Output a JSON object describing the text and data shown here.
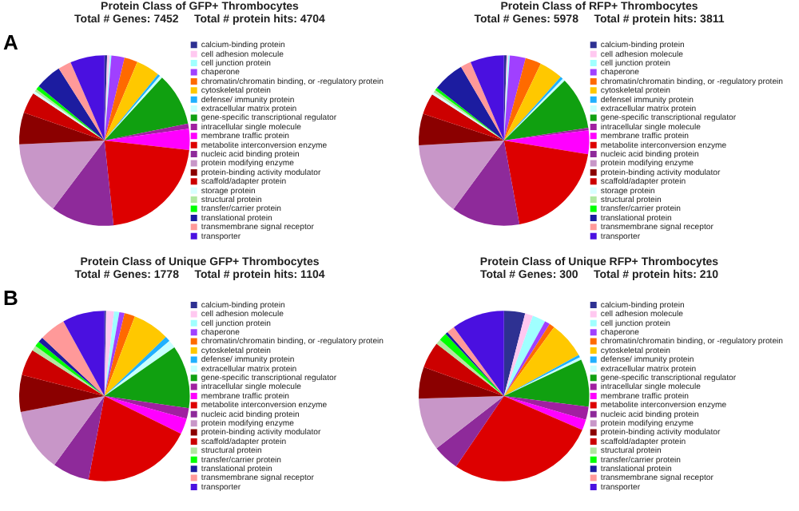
{
  "chart_data": [
    {
      "type": "pie",
      "title": "Protein Class of GFP+ Thrombocytes",
      "subtitle": "Total # Genes: 7452     Total # protein hits: 4704",
      "annotations": [
        "A"
      ],
      "legend": "right",
      "categories": [
        "calcium-binding protein",
        "cell adhesion molecule",
        "cell junction protein",
        "chaperone",
        "chromatin/chromatin binding, or -regulatory protein",
        "cytoskeletal protein",
        "defense/ immunity protein",
        "extracellular matrix protein",
        "gene-specific transcriptional regulator",
        "intracellular single molecule",
        "membrane traffic protein",
        "metabolite interconversion enzyme",
        "nucleic acid binding protein",
        "protein modifying enzyme",
        "protein-binding activity modulator",
        "scaffold/adapter protein",
        "storage protein",
        "structural protein",
        "transfer/carrier protein",
        "translational protein",
        "transmembrane signal receptor",
        "transporter"
      ],
      "values": [
        0.5,
        0.5,
        0.3,
        2.5,
        2.5,
        4.5,
        0.5,
        0.5,
        10,
        1,
        4,
        21.5,
        12,
        14,
        6,
        4,
        0.5,
        0.5,
        0.7,
        5,
        2.5,
        6.5
      ],
      "colors": [
        "#2e3192",
        "#ffc8f0",
        "#a0ffff",
        "#a040ff",
        "#ff6a00",
        "#ffc800",
        "#20b0ff",
        "#c8ffff",
        "#10a010",
        "#a020a0",
        "#ff00ff",
        "#dd0000",
        "#8e2a9a",
        "#c896c8",
        "#8b0000",
        "#cc0000",
        "#d8ffff",
        "#b0e8a0",
        "#00ff00",
        "#1c1ca0",
        "#ff9999",
        "#4a10e0"
      ]
    },
    {
      "type": "pie",
      "title": "Protein Class of RFP+ Thrombocytes",
      "subtitle": "Total # Genes: 5978     Total # protein hits: 3811",
      "legend": "right",
      "categories": [
        "calcium-binding protein",
        "cell adhesion molecule",
        "cell junction protein",
        "chaperone",
        "chromatin/chromatin binding, or -regulatory protein",
        "cytoskeletal protein",
        "defensel immunity protein",
        "extracellular matrix protein",
        "gene-specific transcriptional regulator",
        "intracellular single molecule",
        "membrane traffic protein",
        "metabolite interconversion enzyme",
        "nucleic acid binding protein",
        "protein modifying enzyme",
        "protein-binding activity modulator",
        "scaffold/adapter protein",
        "storage protein",
        "structural protein",
        "transfer/carrier protein",
        "translational protein",
        "transmembrane signal receptor",
        "transporter"
      ],
      "values": [
        0.5,
        0.3,
        0.3,
        3,
        3,
        4.5,
        0.5,
        0.5,
        10,
        0.5,
        4.5,
        19.5,
        13,
        14,
        6,
        4,
        0.5,
        0.5,
        0.5,
        6,
        2,
        6.4
      ],
      "colors": [
        "#2e3192",
        "#ffc8f0",
        "#a0ffff",
        "#a040ff",
        "#ff6a00",
        "#ffc800",
        "#20b0ff",
        "#c8ffff",
        "#10a010",
        "#a020a0",
        "#ff00ff",
        "#dd0000",
        "#8e2a9a",
        "#c896c8",
        "#8b0000",
        "#cc0000",
        "#d8ffff",
        "#b0e8a0",
        "#00ff00",
        "#1c1ca0",
        "#ff9999",
        "#4a10e0"
      ]
    },
    {
      "type": "pie",
      "title": "Protein Class of Unique GFP+ Thrombocytes",
      "subtitle": "Total # Genes: 1778     Total # protein hits: 1104",
      "annotations": [
        "B"
      ],
      "legend": "right",
      "categories": [
        "calcium-binding protein",
        "cell adhesion molecule",
        "cell junction protein",
        "chaperone",
        "chromatin/chromatin binding, or -regulatory protein",
        "cytoskeletal protein",
        "defense/ immunity protein",
        "extracellular matrix protein",
        "gene-specific transcriptional regulator",
        "intracellular single molecule",
        "membrane traffic protein",
        "metabolite interconversion enzyme",
        "nucleic acid binding protein",
        "protein modifying enzyme",
        "protein-binding activity modulator",
        "scaffold/adapter protein",
        "structural protein",
        "transfer/carrier protein",
        "translational protein",
        "transmembrane signal receptor",
        "transporter"
      ],
      "values": [
        0.3,
        1.5,
        1,
        1,
        2,
        7,
        1,
        1.5,
        12,
        2,
        3,
        20.7,
        7,
        12,
        7,
        5,
        1,
        1,
        1,
        5,
        8
      ],
      "colors": [
        "#2e3192",
        "#ffc8f0",
        "#a0ffff",
        "#a040ff",
        "#ff6a00",
        "#ffc800",
        "#20b0ff",
        "#c8ffff",
        "#10a010",
        "#a020a0",
        "#ff00ff",
        "#dd0000",
        "#8e2a9a",
        "#c896c8",
        "#8b0000",
        "#cc0000",
        "#b0e8a0",
        "#00ff00",
        "#1c1ca0",
        "#ff9999",
        "#4a10e0"
      ]
    },
    {
      "type": "pie",
      "title": "Protein Class of Unique RFP+ Thrombocytes",
      "subtitle": "Total # Genes: 300     Total # protein hits: 210",
      "legend": "right",
      "categories": [
        "calcium-binding protein",
        "cell adhesion molecule",
        "cell junction protein",
        "chaperone",
        "chromatin/chromatin binding, or -regulatory protein",
        "cytoskeletal protein",
        "defense/ immunity protein",
        "extracellular matrix protein",
        "gene-specific transcriptional regulator",
        "intracellular single molecule",
        "membrane traffic protein",
        "metabolite interconversion enzyme",
        "nucleic acid binding protein",
        "protein modifying enzyme",
        "protein-binding activity modulator",
        "scaffold/adapter protein",
        "structural protein",
        "transfer/carrier protein",
        "translational protein",
        "transmembrane signal receptor",
        "transporter"
      ],
      "values": [
        4,
        1.5,
        2.5,
        1,
        1,
        7,
        0.5,
        0.5,
        9,
        2.5,
        2,
        28,
        5,
        10,
        6,
        5,
        1,
        1.5,
        0.5,
        1.5,
        10
      ],
      "colors": [
        "#2e3192",
        "#ffc8f0",
        "#a0ffff",
        "#a040ff",
        "#ff6a00",
        "#ffc800",
        "#20b0ff",
        "#c8ffff",
        "#10a010",
        "#a020a0",
        "#ff00ff",
        "#dd0000",
        "#8e2a9a",
        "#c896c8",
        "#8b0000",
        "#cc0000",
        "#b0e8a0",
        "#00ff00",
        "#1c1ca0",
        "#ff9999",
        "#4a10e0"
      ]
    }
  ]
}
